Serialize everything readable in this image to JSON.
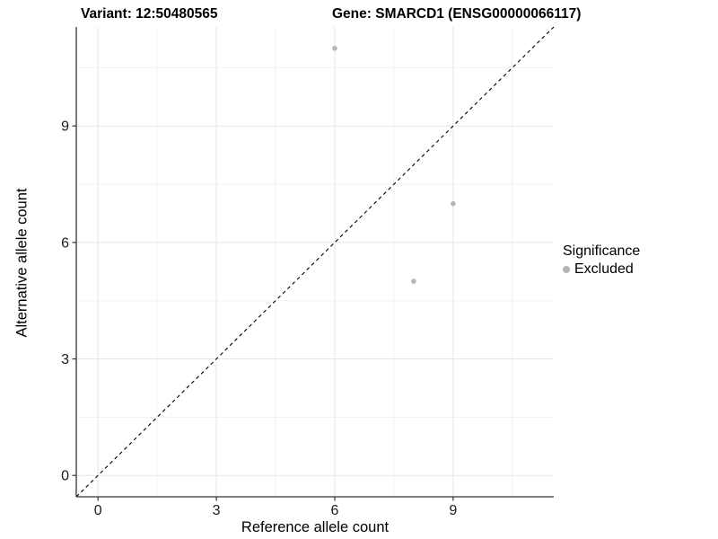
{
  "header": {
    "variant_title": "Variant: 12:50480565",
    "gene_title": "Gene: SMARCD1 (ENSG00000066117)"
  },
  "chart_data": {
    "type": "scatter",
    "title_left": "Variant: 12:50480565",
    "title_right": "Gene: SMARCD1 (ENSG00000066117)",
    "xlabel": "Reference allele count",
    "ylabel": "Alternative allele count",
    "xlim": [
      -0.55,
      11.55
    ],
    "ylim": [
      -0.55,
      11.55
    ],
    "x_ticks": [
      0,
      3,
      6,
      9
    ],
    "y_ticks": [
      0,
      3,
      6,
      9
    ],
    "x_minor_ticks": [
      1.5,
      4.5,
      7.5,
      10.5
    ],
    "y_minor_ticks": [
      1.5,
      4.5,
      7.5,
      10.5
    ],
    "grid": true,
    "identity_line": {
      "style": "dashed",
      "from": [
        -0.55,
        -0.55
      ],
      "to": [
        11.55,
        11.55
      ],
      "color": "#000000"
    },
    "series": [
      {
        "name": "Excluded",
        "color": "#b5b5b5",
        "points": [
          [
            6,
            11
          ],
          [
            8,
            5
          ],
          [
            9,
            7
          ]
        ]
      }
    ],
    "legend": {
      "title": "Significance",
      "position": "right",
      "entries": [
        {
          "label": "Excluded",
          "color": "#b5b5b5"
        }
      ]
    },
    "colors": {
      "axis_line": "#333333",
      "major_grid": "#e5e5e5",
      "minor_grid": "#f2f2f2",
      "tick_label": "#1a1a1a",
      "background": "#ffffff"
    }
  }
}
